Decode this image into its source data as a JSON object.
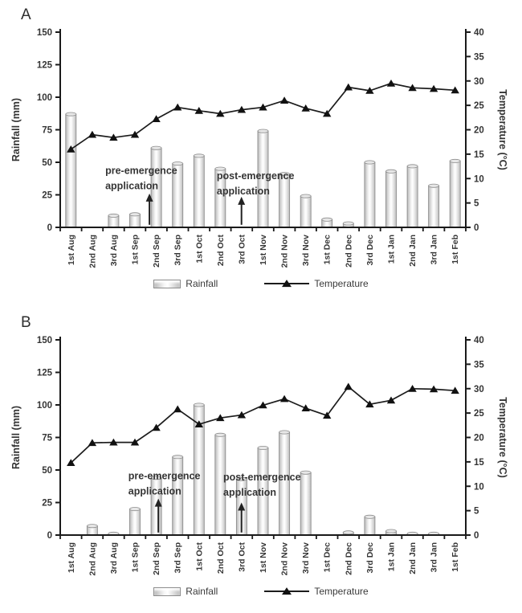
{
  "colors": {
    "bar_edge": "#b9b9b9",
    "bar_mid": "#fdfdfd",
    "bar_stroke": "#8d8d8d",
    "bar_top": "#e7e7e7",
    "line": "#1c1c1c",
    "marker": "#111111",
    "axis": "#1a1a1a",
    "tick_text": "#353535",
    "annotation_text": "#2b2b2b",
    "arrow": "#222222"
  },
  "legend": {
    "rainfall_label": "Rainfall",
    "temperature_label": "Temperature"
  },
  "panels": [
    {
      "label": "A",
      "chart_data": {
        "type": "combo-bar-line",
        "categories": [
          "1st Aug",
          "2nd Aug",
          "3rd Aug",
          "1st Sep",
          "2nd Sep",
          "3rd Sep",
          "1st Oct",
          "2nd Oct",
          "3rd Oct",
          "1st Nov",
          "2nd Nov",
          "3rd Nov",
          "1st Dec",
          "2nd Dec",
          "3rd Dec",
          "1st Jan",
          "2nd Jan",
          "3rd Jan",
          "1st Feb"
        ],
        "series": [
          {
            "name": "Rainfall",
            "type": "bar",
            "axis": "left",
            "values": [
              87,
              0,
              9,
              10,
              61,
              49,
              55,
              45,
              0,
              74,
              41,
              24,
              6,
              3,
              50,
              43,
              47,
              32,
              51
            ]
          },
          {
            "name": "Temperature",
            "type": "line",
            "axis": "right",
            "values": [
              16,
              19,
              18.4,
              19,
              22.2,
              24.6,
              23.9,
              23.3,
              24.1,
              24.6,
              26,
              24.4,
              23.3,
              28.7,
              28,
              29.5,
              28.6,
              28.4,
              28.1
            ]
          }
        ],
        "ylabel_left": "Rainfall (mm)",
        "ylabel_right": "Temperature (°C)",
        "ylim_left": [
          0,
          150
        ],
        "yticks_left": [
          0,
          25,
          50,
          75,
          100,
          125,
          150
        ],
        "ylim_right": [
          0,
          40
        ],
        "yticks_right": [
          0,
          5,
          10,
          15,
          20,
          25,
          30,
          35,
          40
        ],
        "grid": false,
        "annotations": [
          {
            "line1": "pre-emergence",
            "line2": "application",
            "text_x_frac": 0.111,
            "text_y_mm": 41,
            "arrow_x_frac": 0.22,
            "arrow_tip_mm": 26,
            "arrow_base_mm": 2
          },
          {
            "line1": "post-emergence",
            "line2": "application",
            "text_x_frac": 0.386,
            "text_y_mm": 37,
            "arrow_x_frac": 0.447,
            "arrow_tip_mm": 23.5,
            "arrow_base_mm": 2
          }
        ]
      }
    },
    {
      "label": "B",
      "chart_data": {
        "type": "combo-bar-line",
        "categories": [
          "1st Aug",
          "2nd Aug",
          "3rd Aug",
          "1st Sep",
          "2nd Sep",
          "3rd Sep",
          "1st Oct",
          "2nd Oct",
          "3rd Oct",
          "1st Nov",
          "2nd Nov",
          "3rd Nov",
          "1st Dec",
          "2nd Dec",
          "3rd Dec",
          "1st Jan",
          "2nd Jan",
          "3rd Jan",
          "1st Feb"
        ],
        "series": [
          {
            "name": "Rainfall",
            "type": "bar",
            "axis": "left",
            "values": [
              0,
              7,
              1,
              20,
              44,
              60,
              100,
              77,
              43,
              67,
              79,
              48,
              0,
              2,
              14,
              3,
              1,
              1,
              0
            ]
          },
          {
            "name": "Temperature",
            "type": "line",
            "axis": "right",
            "values": [
              14.8,
              18.9,
              19,
              19,
              22,
              25.8,
              22.7,
              24,
              24.6,
              26.6,
              27.9,
              26,
              24.5,
              30.4,
              26.8,
              27.6,
              30,
              29.9,
              29.6
            ]
          }
        ],
        "ylabel_left": "Rainfall (mm)",
        "ylabel_right": "Temperature (°C)",
        "ylim_left": [
          0,
          150
        ],
        "yticks_left": [
          0,
          25,
          50,
          75,
          100,
          125,
          150
        ],
        "ylim_right": [
          0,
          40
        ],
        "yticks_right": [
          0,
          5,
          10,
          15,
          20,
          25,
          30,
          35,
          40
        ],
        "grid": false,
        "annotations": [
          {
            "line1": "pre-emergence",
            "line2": "application",
            "text_x_frac": 0.168,
            "text_y_mm": 43,
            "arrow_x_frac": 0.242,
            "arrow_tip_mm": 28,
            "arrow_base_mm": 2
          },
          {
            "line1": "post-emergence",
            "line2": "application",
            "text_x_frac": 0.402,
            "text_y_mm": 42,
            "arrow_x_frac": 0.447,
            "arrow_tip_mm": 25,
            "arrow_base_mm": 2
          }
        ]
      }
    }
  ]
}
